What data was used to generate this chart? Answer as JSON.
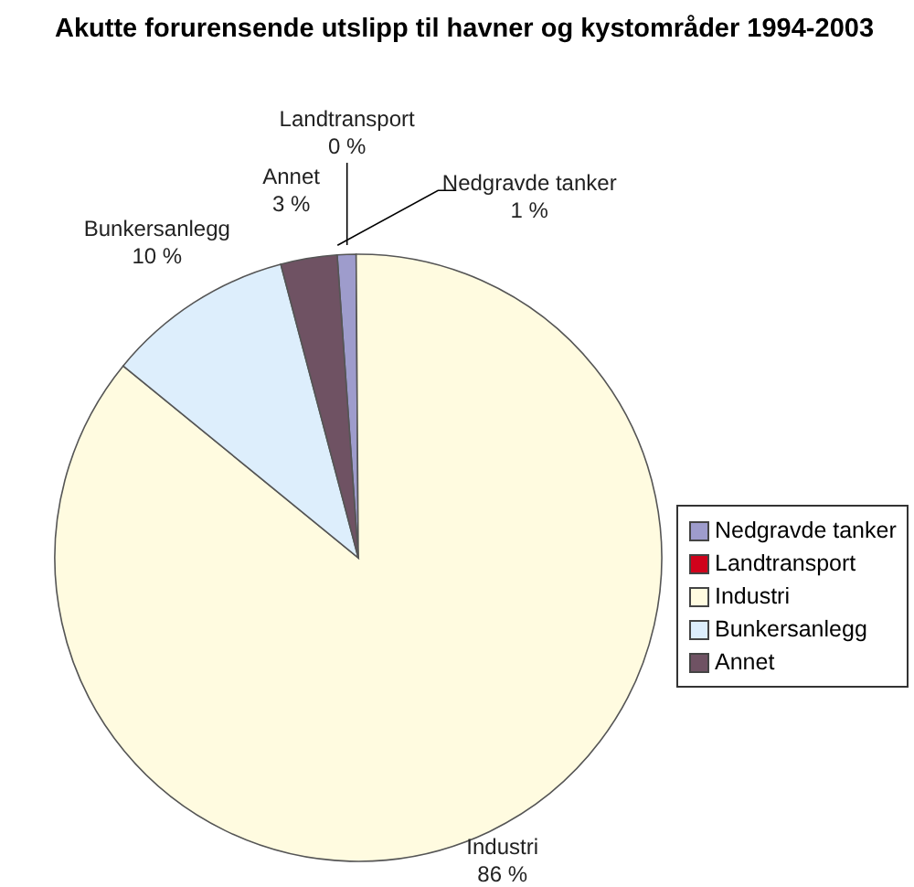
{
  "chart_data": {
    "type": "pie",
    "title": "Akutte forurensende utslipp til havner og kystområder 1994-2003",
    "categories": [
      "Nedgravde tanker",
      "Landtransport",
      "Industri",
      "Bunkersanlegg",
      "Annet"
    ],
    "values": [
      1,
      0,
      86,
      10,
      3
    ],
    "colors": [
      "#9e9ccc",
      "#d0021b",
      "#fffbe0",
      "#ddeefc",
      "#6f5263"
    ],
    "value_labels": [
      "1 %",
      "0 %",
      "86 %",
      "10 %",
      "3 %"
    ],
    "legend": "right"
  }
}
